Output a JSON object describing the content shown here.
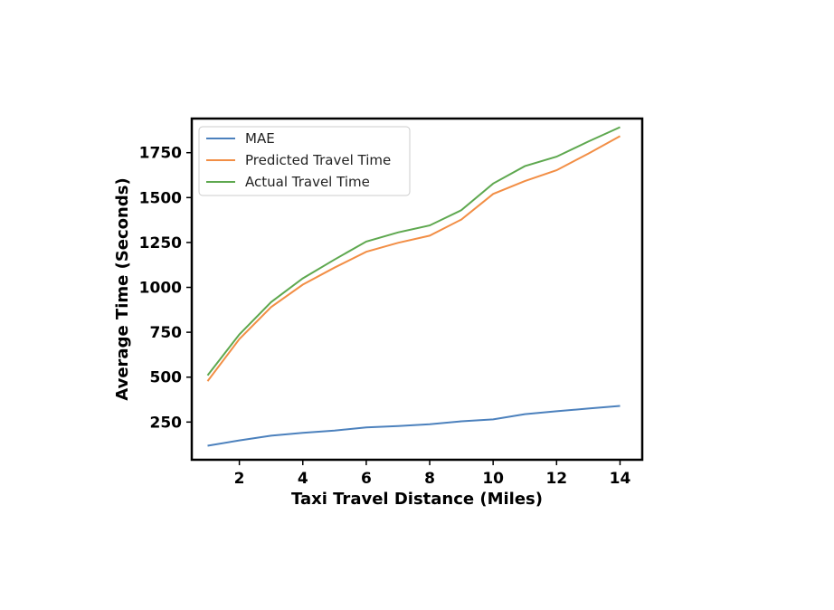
{
  "chart_data": {
    "type": "line",
    "title": "",
    "xlabel": "Taxi Travel Distance (Miles)",
    "ylabel": "Average Time (Seconds)",
    "xlim": [
      0.5,
      14.7
    ],
    "ylim": [
      40,
      1940
    ],
    "xticks": [
      2,
      4,
      6,
      8,
      10,
      12,
      14
    ],
    "yticks": [
      250,
      500,
      750,
      1000,
      1250,
      1500,
      1750
    ],
    "grid": false,
    "legend_position": "upper-left",
    "x": [
      1,
      2,
      3,
      4,
      5,
      6,
      7,
      8,
      9,
      10,
      11,
      12,
      13,
      14
    ],
    "series": [
      {
        "name": "MAE",
        "color": "#4c81bd",
        "values": [
          118,
          148,
          174,
          190,
          203,
          220,
          228,
          238,
          254,
          265,
          294,
          310,
          325,
          340
        ]
      },
      {
        "name": "Predicted Travel Time",
        "color": "#f28e45",
        "values": [
          478,
          712,
          890,
          1015,
          1110,
          1198,
          1248,
          1288,
          1378,
          1520,
          1592,
          1652,
          1745,
          1842
        ]
      },
      {
        "name": "Actual Travel Time",
        "color": "#5ea84f",
        "values": [
          510,
          738,
          918,
          1050,
          1155,
          1255,
          1306,
          1345,
          1430,
          1578,
          1675,
          1728,
          1812,
          1892
        ]
      }
    ]
  }
}
